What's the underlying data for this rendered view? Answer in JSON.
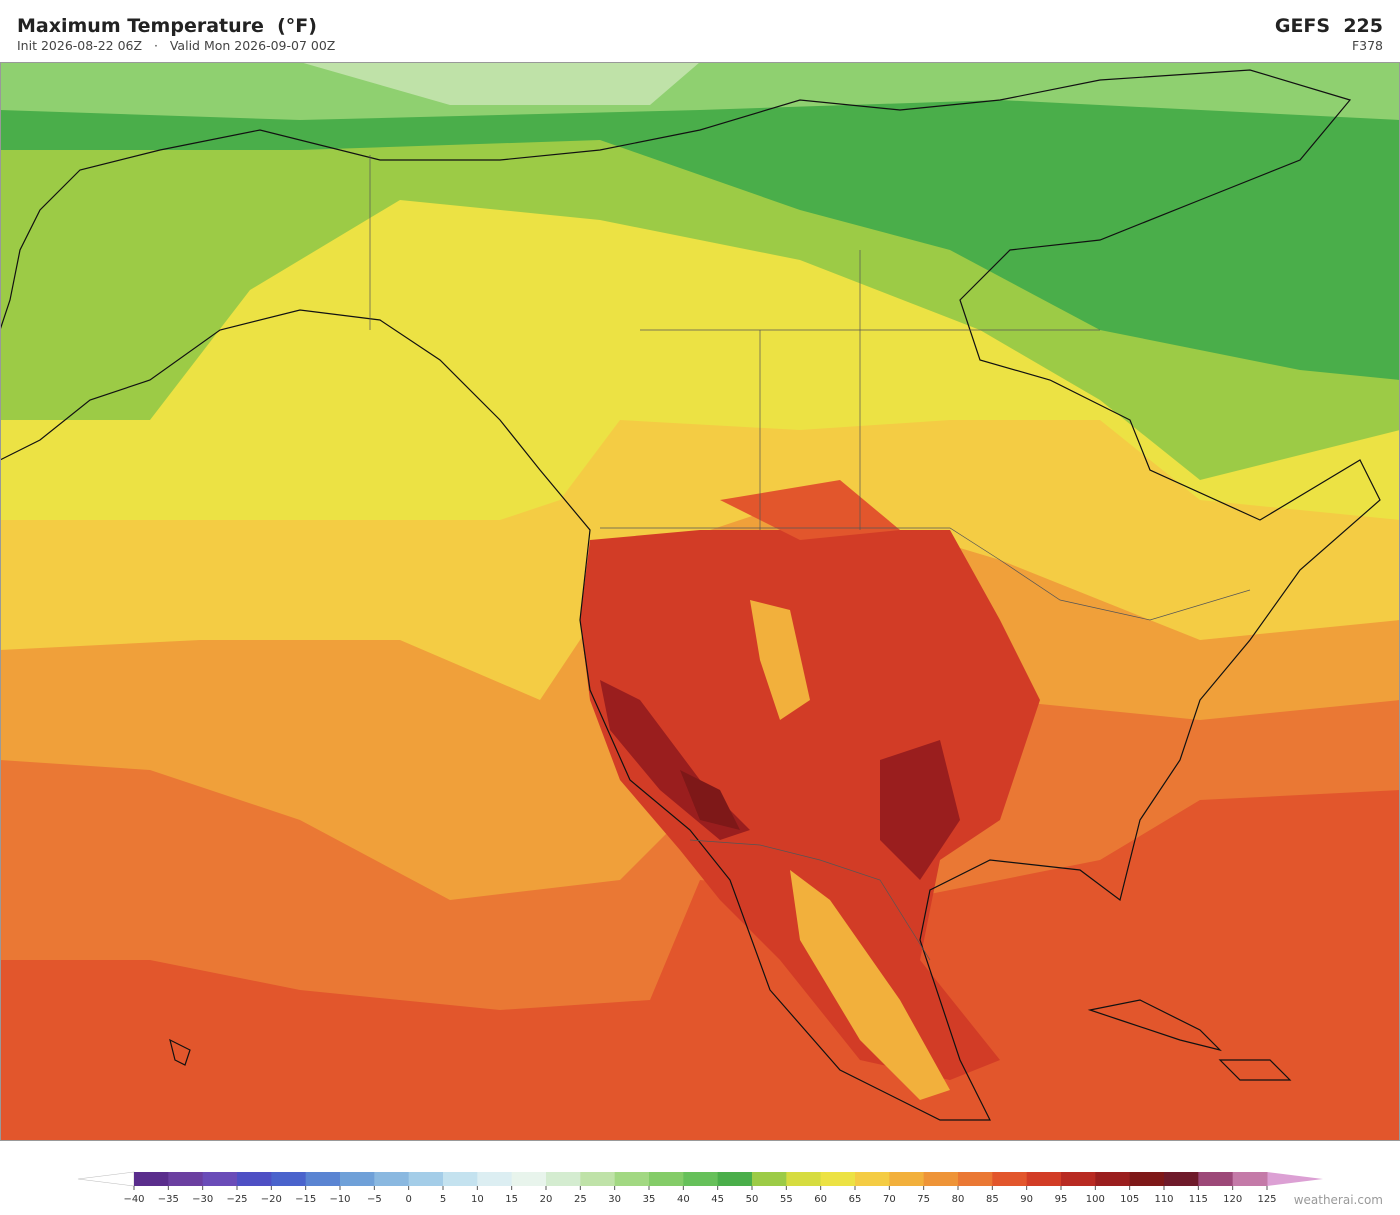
{
  "header": {
    "title": "Maximum Temperature  (°F)",
    "subtitle": "Init 2026-08-22 06Z   ·   Valid Mon 2026-09-07 00Z",
    "model": "GEFS  225",
    "forecast_hour": "F378"
  },
  "colorbar": {
    "ticks": [
      {
        "value": -40,
        "label": "−40"
      },
      {
        "value": -35,
        "label": "−35"
      },
      {
        "value": -30,
        "label": "−30"
      },
      {
        "value": -25,
        "label": "−25"
      },
      {
        "value": -20,
        "label": "−20"
      },
      {
        "value": -15,
        "label": "−15"
      },
      {
        "value": -10,
        "label": "−10"
      },
      {
        "value": -5,
        "label": "−5"
      },
      0,
      5,
      10,
      15,
      20,
      25,
      30,
      35,
      40,
      45,
      50,
      55,
      60,
      65,
      70,
      75,
      80,
      85,
      90,
      95,
      100,
      105,
      110,
      115,
      120,
      125
    ],
    "colors": [
      "#5a2d8c",
      "#6b3fa0",
      "#6a4cb8",
      "#4e4fc4",
      "#4a63cc",
      "#5a84d2",
      "#6fa0d8",
      "#8ab8e0",
      "#a4cde8",
      "#c4e2ef",
      "#dceef2",
      "#e8f4ec",
      "#d4ecd0",
      "#bfe2a8",
      "#a2d882",
      "#84cc68",
      "#66c05a",
      "#4aae4a",
      "#9ccb46",
      "#d6dc40",
      "#ece244",
      "#f4cc44",
      "#f2b03c",
      "#ee9438",
      "#ea7834",
      "#e2562c",
      "#d23c26",
      "#b82a22",
      "#9a1e1e",
      "#7e1818",
      "#6e1a2a",
      "#9c4878",
      "#c47aa8"
    ],
    "under_color": "#ffffff",
    "over_color": "#dca0d4"
  },
  "watermark": "weatherai.com"
}
